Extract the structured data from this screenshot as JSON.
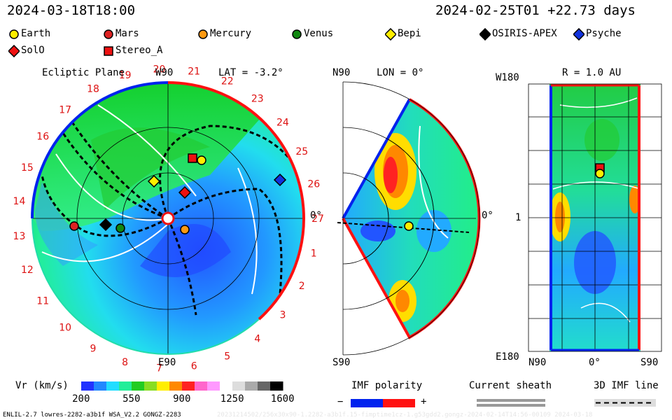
{
  "header": {
    "left_datetime": "2024-03-18T18:00",
    "right_datetime": "2024-02-25T01 +22.73 days"
  },
  "legend": [
    {
      "name": "Earth",
      "shape": "circle",
      "color": "#ffee00"
    },
    {
      "name": "Mars",
      "shape": "circle",
      "color": "#dd2222"
    },
    {
      "name": "Mercury",
      "shape": "circle",
      "color": "#ff9911"
    },
    {
      "name": "Venus",
      "shape": "circle",
      "color": "#118811"
    },
    {
      "name": "Bepi",
      "shape": "diamond",
      "color": "#ffee00"
    },
    {
      "name": "OSIRIS-APEX",
      "shape": "diamond",
      "color": "#000000"
    },
    {
      "name": "Psyche",
      "shape": "diamond",
      "color": "#1133dd"
    },
    {
      "name": "SolO",
      "shape": "diamond",
      "color": "#ee1111"
    },
    {
      "name": "Stereo_A",
      "shape": "square",
      "color": "#ee1111"
    }
  ],
  "panels": {
    "ecliptic": {
      "title": "Ecliptic Plane",
      "top_label": "W90",
      "bottom_label": "E90",
      "lat_label": "LAT = -3.2°",
      "zero_label": "0°",
      "carrington_labels": [
        "1",
        "2",
        "3",
        "4",
        "5",
        "6",
        "7",
        "8",
        "9",
        "10",
        "11",
        "12",
        "13",
        "14",
        "15",
        "16",
        "17",
        "18",
        "19",
        "20",
        "21",
        "22",
        "23",
        "24",
        "25",
        "26",
        "27"
      ]
    },
    "meridional": {
      "top_label": "N90",
      "bottom_label": "S90",
      "lon_label": "LON = 0°",
      "zero_label": "0°"
    },
    "map": {
      "title": "R = 1.0 AU",
      "y_top": "W180",
      "y_mid": "1",
      "y_bottom": "E180",
      "x_left": "N90",
      "x_mid": "0°",
      "x_right": "S90"
    }
  },
  "chart_data": {
    "type": "heatmap",
    "title": "Vr (km/s)",
    "colorbar": {
      "label": "Vr (km/s)",
      "ticks": [
        200,
        550,
        900,
        1250,
        1600
      ],
      "range": [
        200,
        1600
      ],
      "colors": [
        "#2233ff",
        "#2288ff",
        "#22ddff",
        "#22ee99",
        "#22cc22",
        "#88dd22",
        "#ffee00",
        "#ff8800",
        "#ff2222",
        "#ff66cc",
        "#ff99ff",
        "#ffffff",
        "#dddddd",
        "#aaaaaa",
        "#666666",
        "#000000"
      ]
    },
    "radial_grid_au": [
      0.5,
      1.0,
      1.5
    ],
    "imf_polarity": {
      "label": "IMF polarity",
      "minus": "−",
      "plus": "+",
      "colors": [
        "#0022ee",
        "#ff1111"
      ]
    },
    "current_sheath": {
      "label": "Current sheath"
    },
    "imf_line": {
      "label": "3D IMF line"
    }
  },
  "footer": {
    "model": "ENLIL-2.7 lowres-2282-a3b1f WSA_V2.2 GONGZ-2283",
    "faint_text": "20231214502/256x30x90-1.2282-a3b1f.15-fimptime1cz-1.g53gdd2.gongz-2024-02-14T14:56-00109  2024-03-18"
  }
}
